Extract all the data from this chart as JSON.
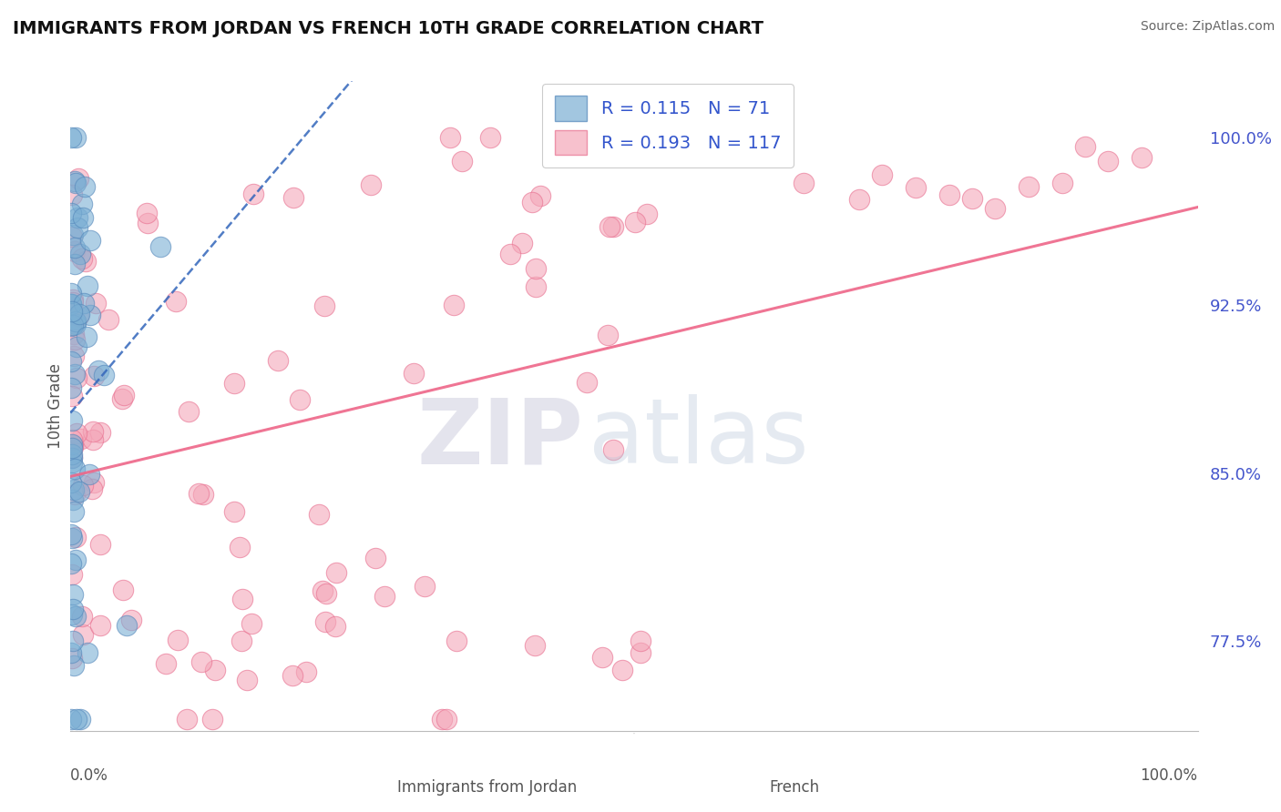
{
  "title": "IMMIGRANTS FROM JORDAN VS FRENCH 10TH GRADE CORRELATION CHART",
  "source": "Source: ZipAtlas.com",
  "ylabel": "10th Grade",
  "y_tick_labels": [
    "77.5%",
    "85.0%",
    "92.5%",
    "100.0%"
  ],
  "y_tick_values": [
    0.775,
    0.85,
    0.925,
    1.0
  ],
  "xlim": [
    0.0,
    1.0
  ],
  "ylim": [
    0.735,
    1.025
  ],
  "legend_blue_r": "0.115",
  "legend_blue_n": "71",
  "legend_pink_r": "0.193",
  "legend_pink_n": "117",
  "blue_color": "#7BAFD4",
  "pink_color": "#F4A7B9",
  "blue_edge_color": "#5588BB",
  "pink_edge_color": "#E87090",
  "blue_trend_color": "#3366BB",
  "pink_trend_color": "#EE6688",
  "watermark_zip_color": "#C8C8DC",
  "watermark_atlas_color": "#B8C8DC",
  "grid_color": "#DDDDDD",
  "tick_label_color": "#4455CC",
  "title_color": "#111111",
  "source_color": "#666666",
  "axis_label_color": "#555555",
  "legend_text_color": "#3355CC"
}
